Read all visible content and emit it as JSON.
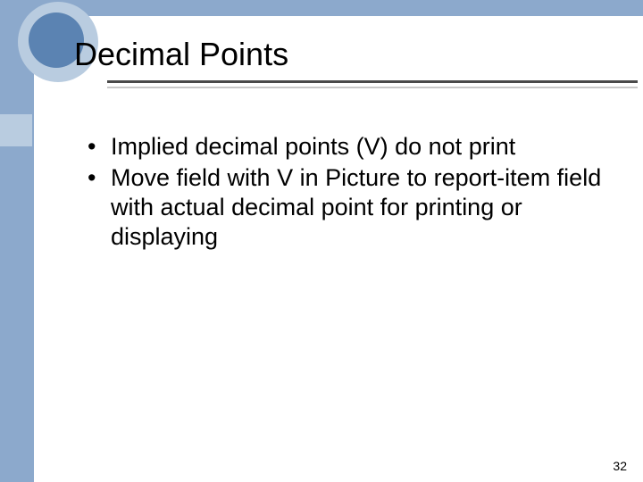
{
  "slide": {
    "title": "Decimal Points",
    "bullets": [
      "Implied decimal points (V) do not print",
      "Move field with V in Picture to report-item field with actual decimal point for printing or displaying"
    ],
    "page_number": "32"
  },
  "style": {
    "background_color": "#8ca9cc",
    "panel_color": "#ffffff",
    "circle_outer_color": "#b9cce0",
    "circle_inner_color": "#5b83b2",
    "hr_dark_color": "#4a4a4a",
    "hr_light_color": "#c8c8c8",
    "left_square_color": "#b9cce0",
    "title_fontsize": 36,
    "body_fontsize": 27,
    "page_number_fontsize": 14,
    "text_color": "#000000"
  }
}
